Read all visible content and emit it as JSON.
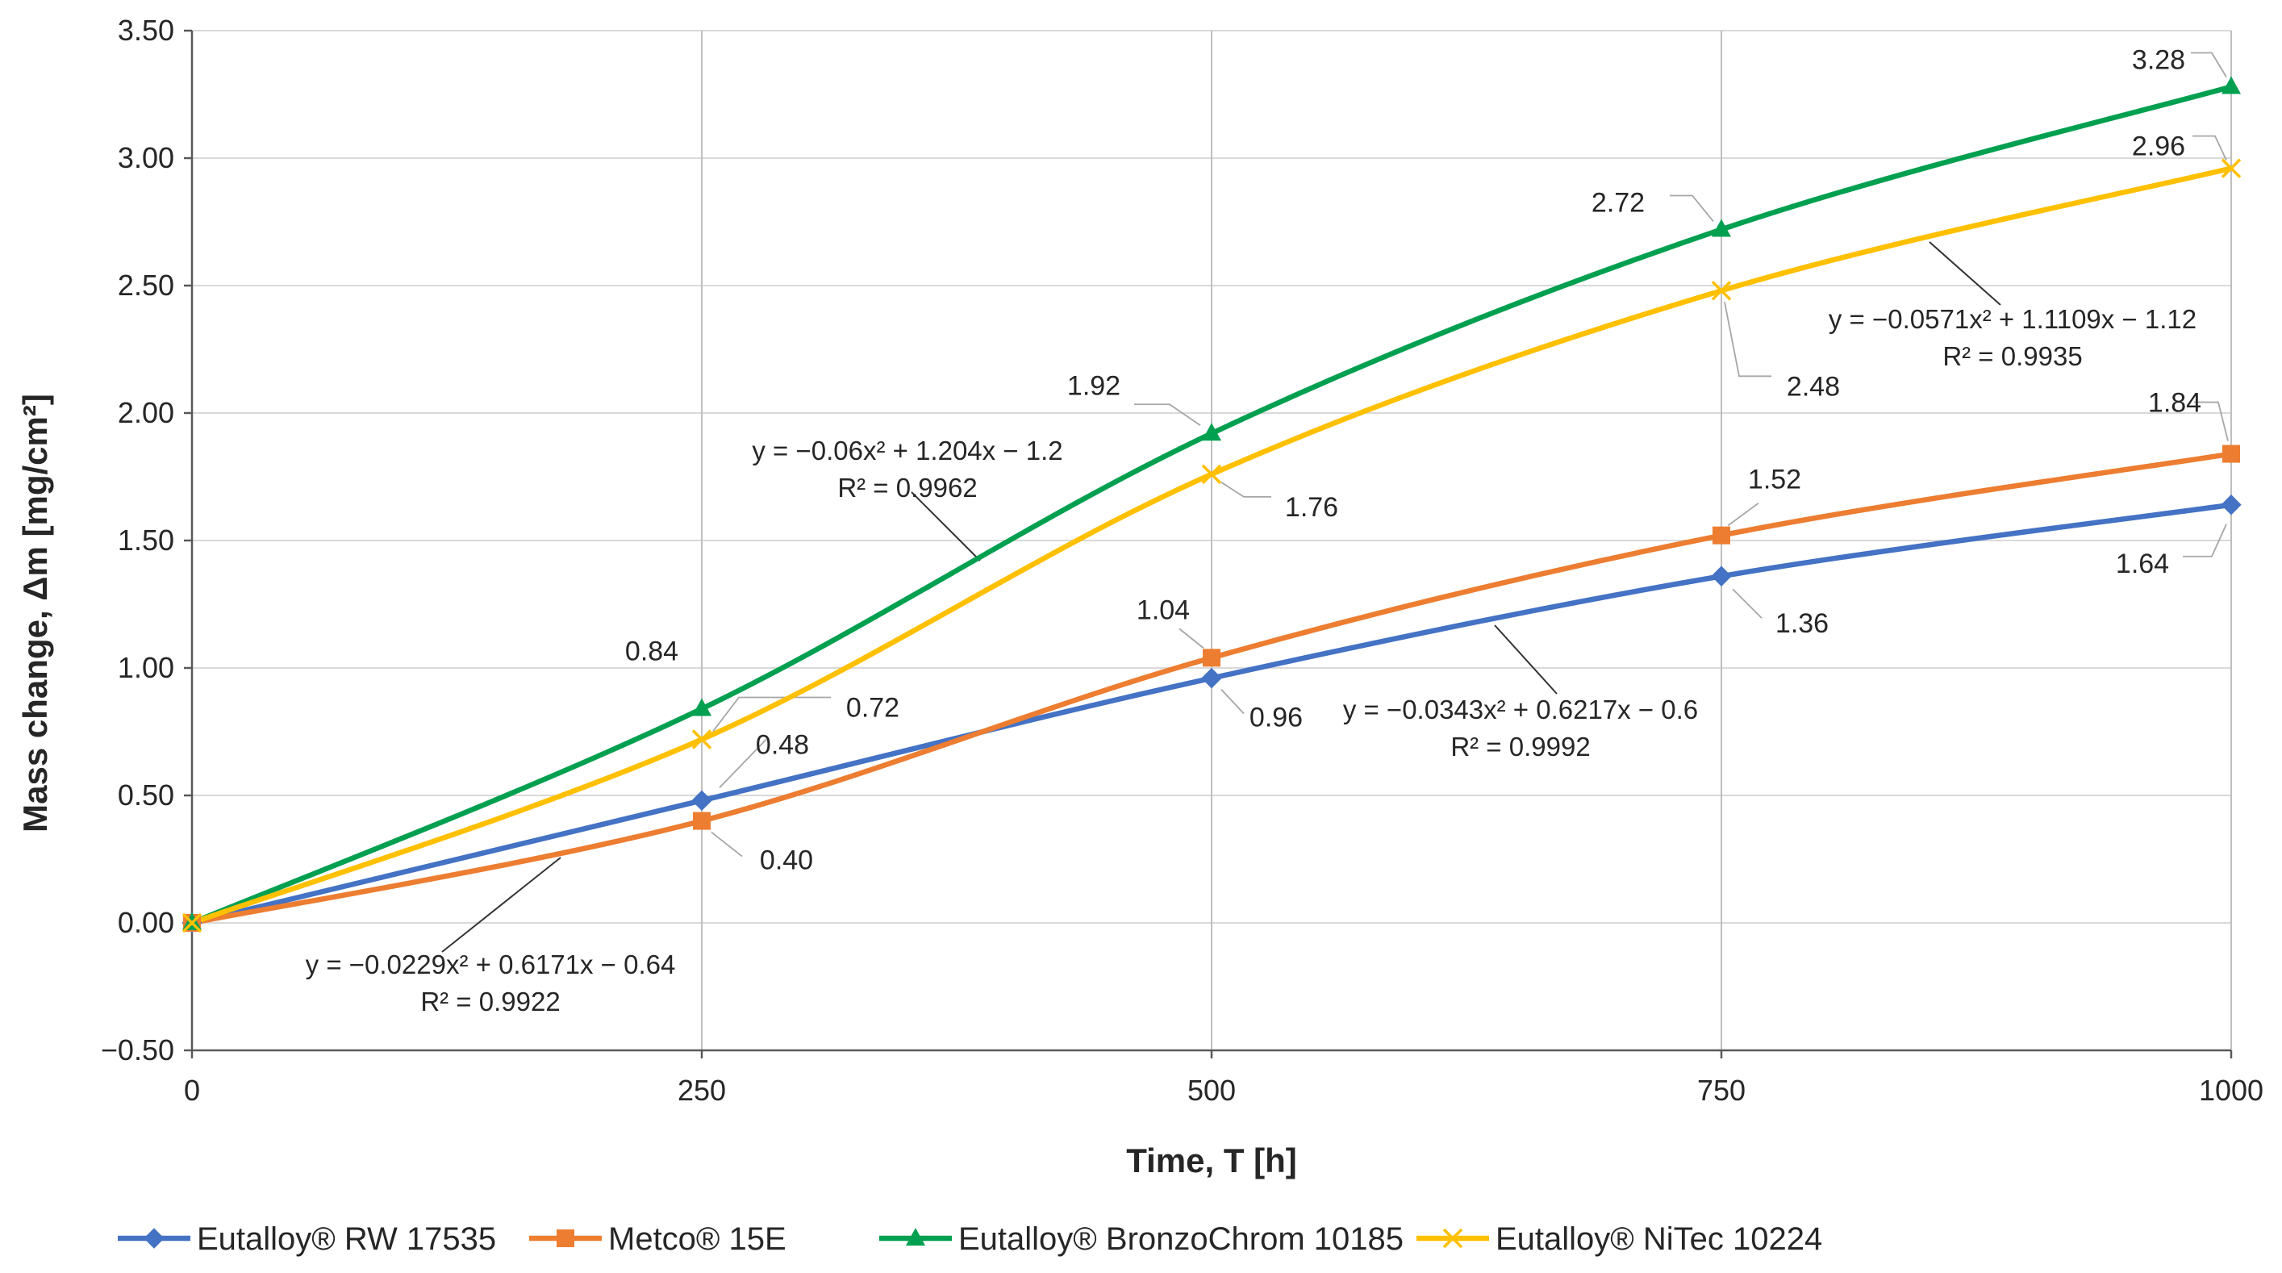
{
  "chart_data": {
    "type": "line",
    "title": "",
    "xlabel": "Time, T [h]",
    "ylabel": "Mass change, Δm [mg/cm²]",
    "xlim": [
      0,
      1000
    ],
    "ylim": [
      -0.5,
      3.5
    ],
    "x_ticks": [
      "0",
      "250",
      "500",
      "750",
      "1000"
    ],
    "y_ticks": [
      "−0.50",
      "0.00",
      "0.50",
      "1.00",
      "1.50",
      "2.00",
      "2.50",
      "3.00",
      "3.50"
    ],
    "x": [
      0,
      250,
      500,
      750,
      1000
    ],
    "series": [
      {
        "name": "Eutalloy® RW 17535",
        "color": "#4472c4",
        "marker": "diamond",
        "values": [
          0.0,
          0.48,
          0.96,
          1.36,
          1.64
        ],
        "value_labels": [
          "",
          "0.48",
          "0.96",
          "1.36",
          "1.64"
        ],
        "trendline": {
          "equation": "y = −0.0343x² + 0.6217x − 0.6",
          "r2": "R² = 0.9992"
        }
      },
      {
        "name": "Metco® 15E",
        "color": "#ed7d31",
        "marker": "square",
        "values": [
          0.0,
          0.4,
          1.04,
          1.52,
          1.84
        ],
        "value_labels": [
          "",
          "0.40",
          "1.04",
          "1.52",
          "1.84"
        ],
        "trendline": {
          "equation": "y = −0.0229x² + 0.6171x − 0.64",
          "r2": "R² = 0.9922"
        }
      },
      {
        "name": "Eutalloy® BronzoChrom 10185",
        "color": "#00a050",
        "marker": "triangle",
        "values": [
          0.0,
          0.84,
          1.92,
          2.72,
          3.28
        ],
        "value_labels": [
          "",
          "0.84",
          "1.92",
          "2.72",
          "3.28"
        ],
        "trendline": {
          "equation": "y = −0.06x² + 1.204x − 1.2",
          "r2": "R² = 0.9962"
        }
      },
      {
        "name": "Eutalloy® NiTec 10224",
        "color": "#ffc000",
        "marker": "x",
        "values": [
          0.0,
          0.72,
          1.76,
          2.48,
          2.96
        ],
        "value_labels": [
          "",
          "0.72",
          "1.76",
          "2.48",
          "2.96"
        ],
        "trendline": {
          "equation": "y = −0.0571x² + 1.1109x − 1.12",
          "r2": "R² = 0.9935"
        }
      }
    ],
    "grid": true,
    "legend_position": "bottom"
  }
}
